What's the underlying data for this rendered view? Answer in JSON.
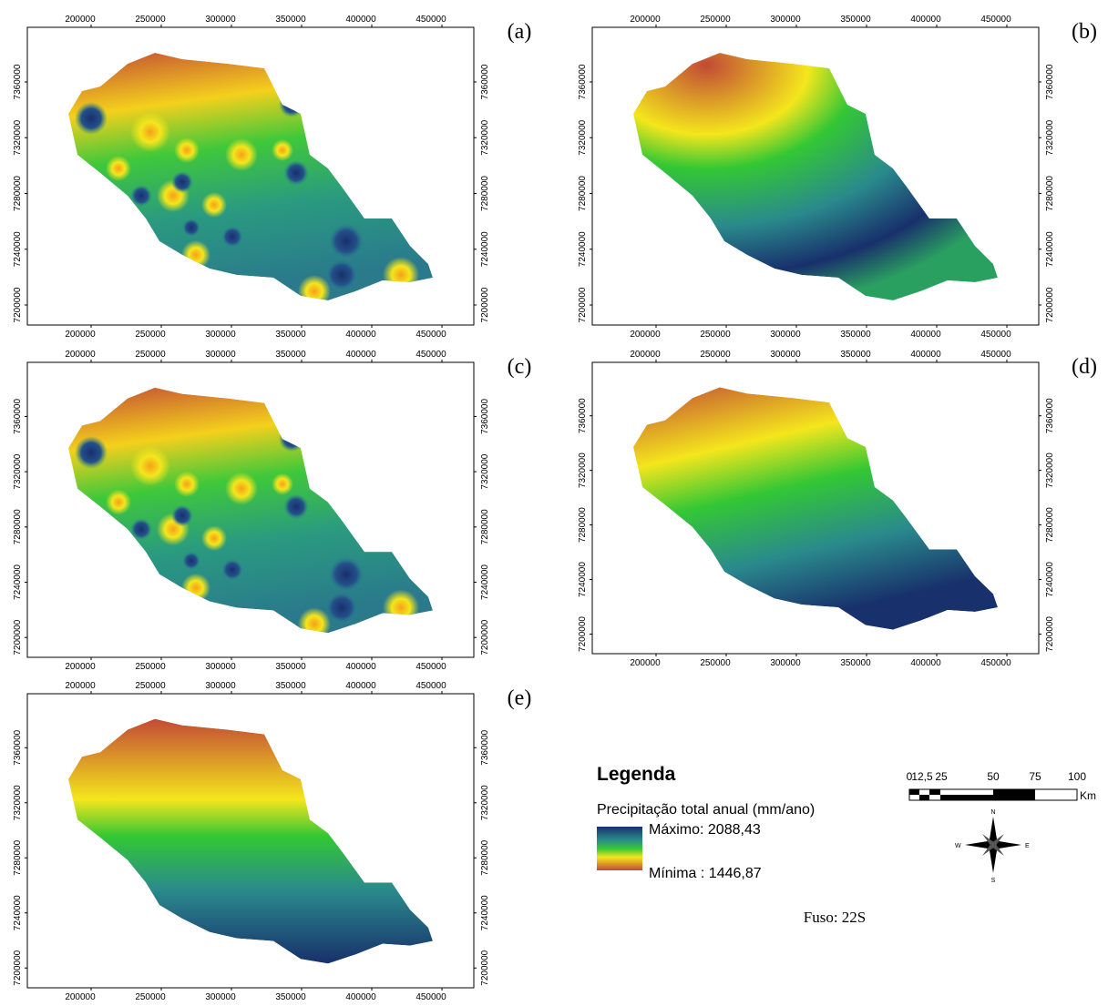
{
  "panels": [
    {
      "label": "(a)"
    },
    {
      "label": "(b)"
    },
    {
      "label": "(c)"
    },
    {
      "label": "(d)"
    },
    {
      "label": "(e)"
    }
  ],
  "x_ticks": [
    200000,
    250000,
    300000,
    350000,
    400000,
    450000
  ],
  "y_ticks": [
    7200000,
    7240000,
    7280000,
    7320000,
    7360000
  ],
  "legend": {
    "title": "Legenda",
    "subtitle": "Precipitação total anual (mm/ano)",
    "max": "Máximo: 2088,43",
    "min": "Mínima : 1446,87"
  },
  "scale_bar": {
    "labels": [
      "0",
      "12,5",
      "25",
      "50",
      "75",
      "100"
    ],
    "unit": "Km"
  },
  "compass": {
    "n": "N",
    "e": "E",
    "s": "S",
    "w": "W"
  },
  "zone": "Fuso: 22S"
}
